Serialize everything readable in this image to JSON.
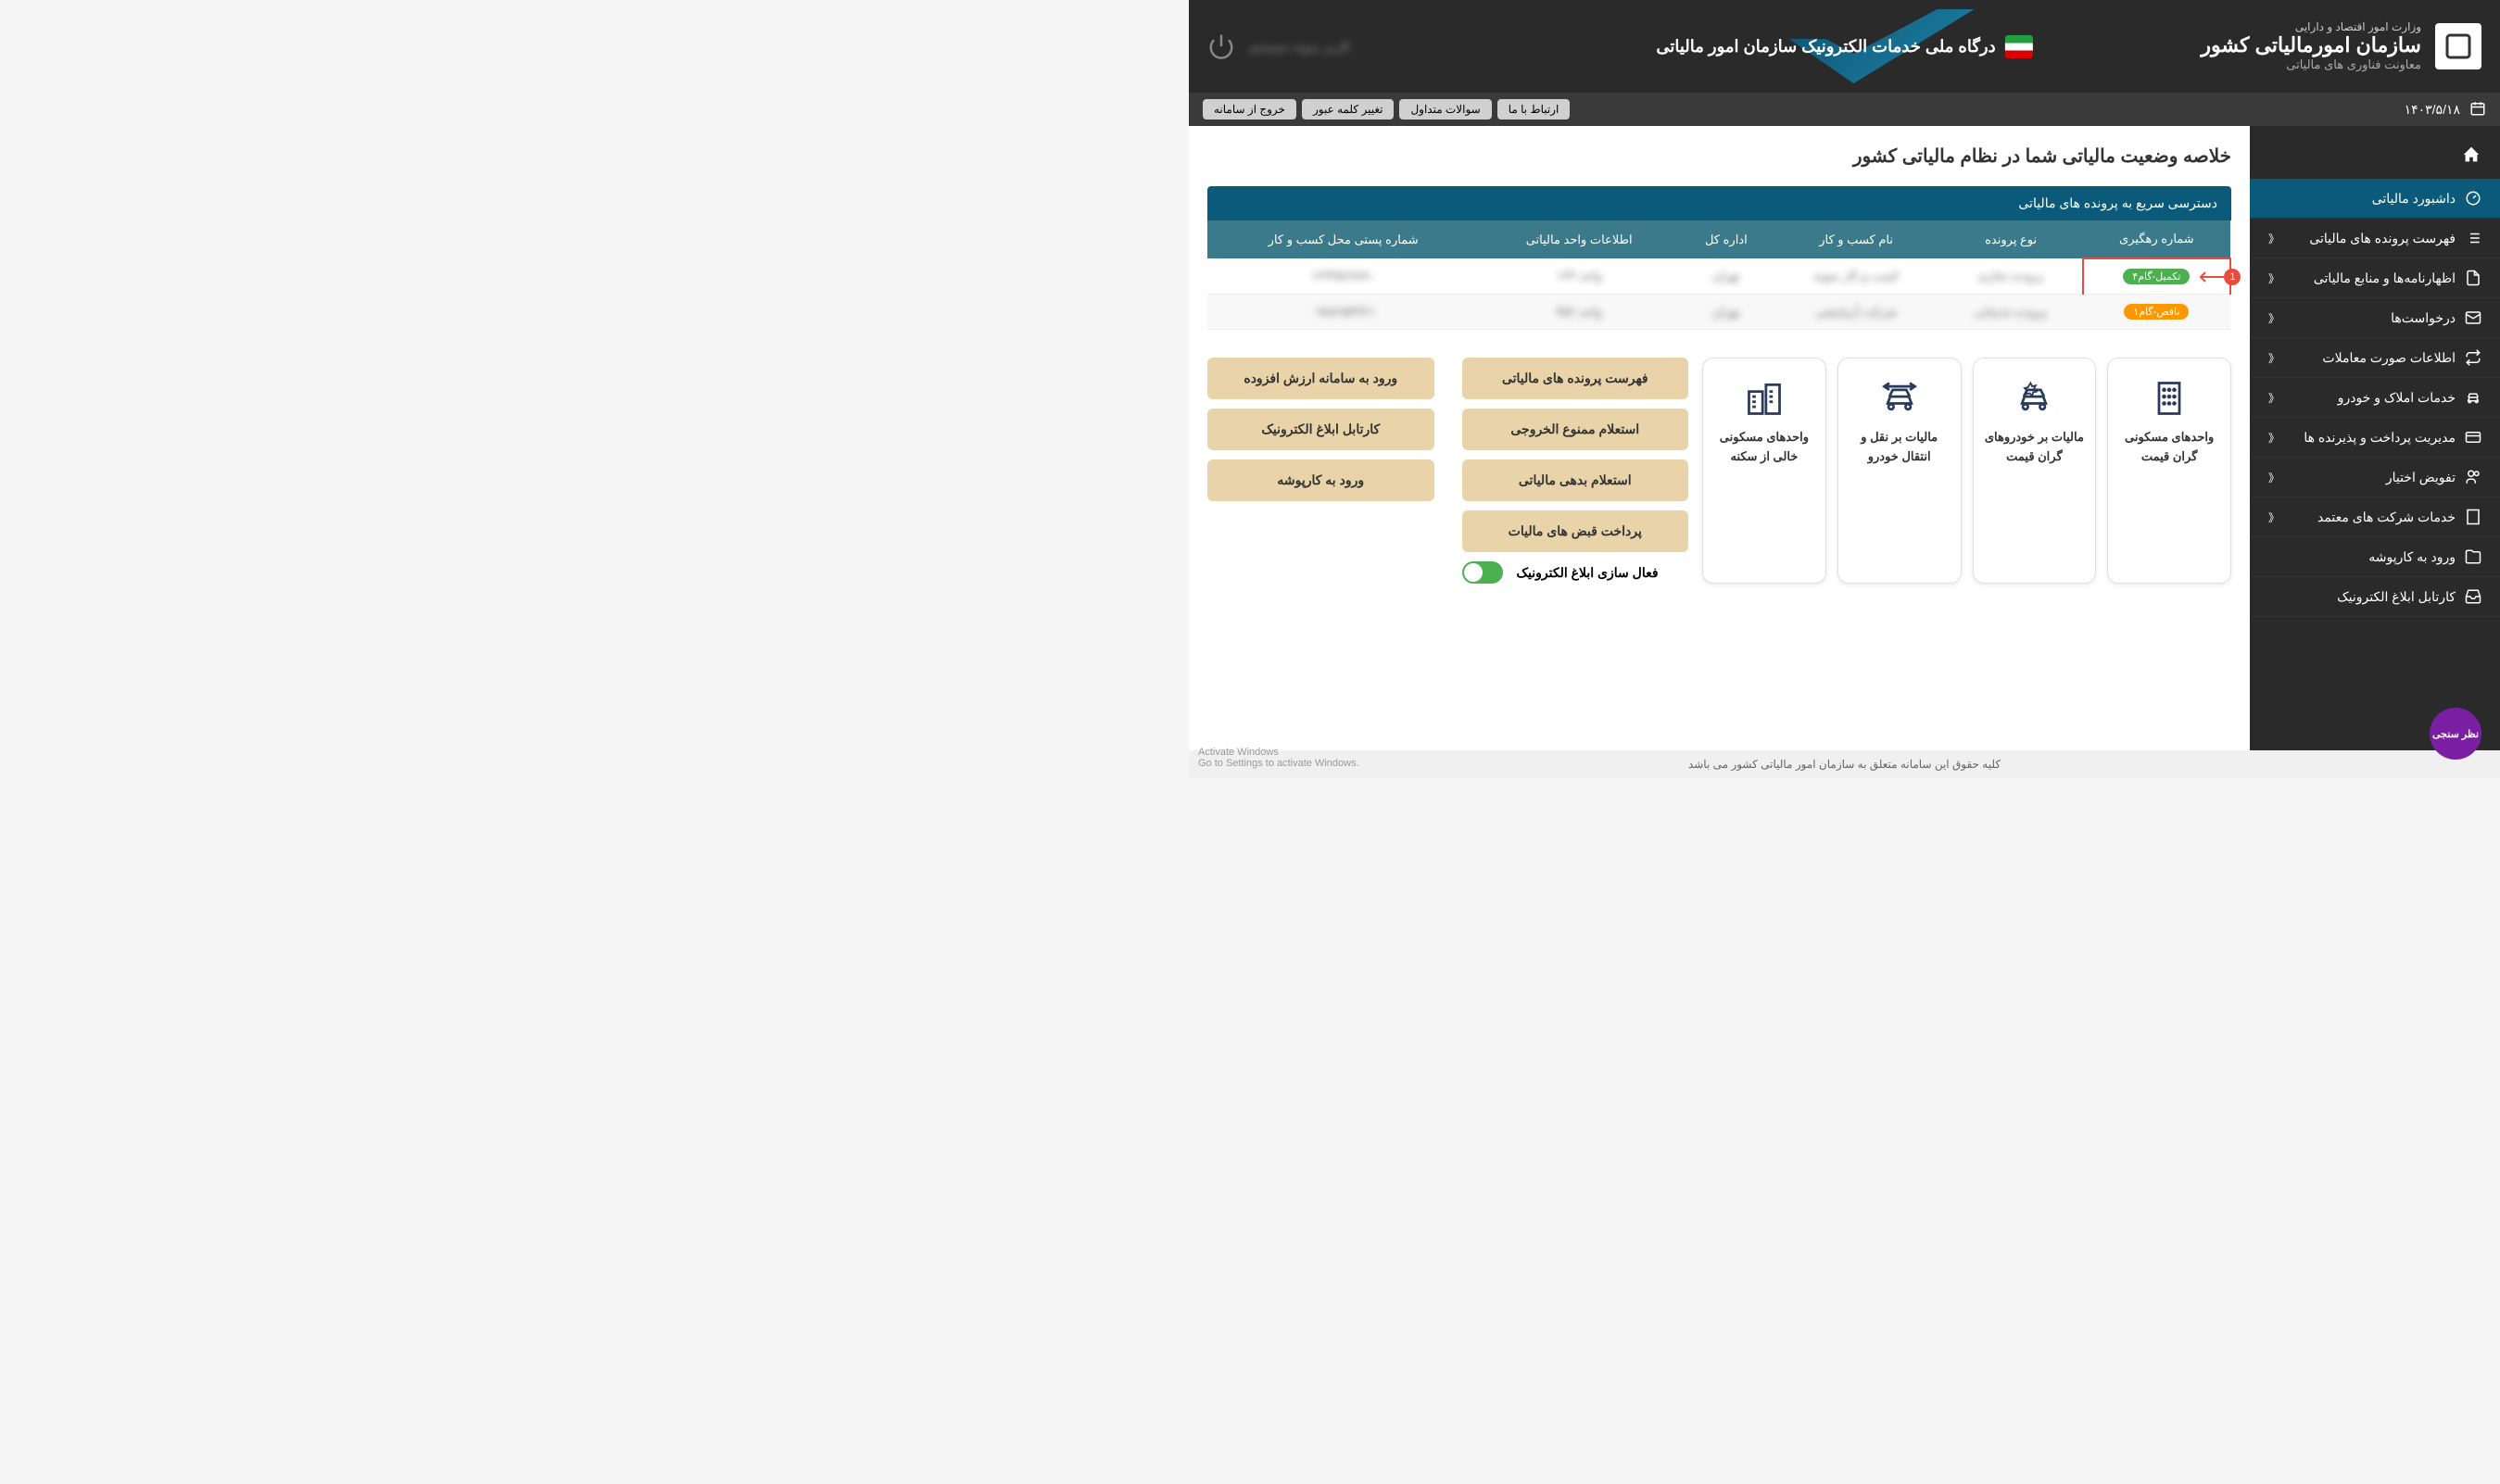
{
  "header": {
    "ministry": "وزارت امور اقتصاد و دارایی",
    "org": "سازمان امورمالیاتی کشور",
    "dept": "معاونت فناوری های مالیاتی",
    "portal": "درگاه ملی خدمات الکترونیک سازمان امور مالیاتی",
    "user": "کاربر نمونه سیستم"
  },
  "topbar": {
    "date": "۱۴۰۳/۵/۱۸",
    "buttons": {
      "contact": "ارتباط با ما",
      "faq": "سوالات متداول",
      "changepass": "تغییر کلمه عبور",
      "logout": "خروج از سامانه"
    }
  },
  "sidebar": {
    "items": [
      {
        "label": "داشبورد مالیاتی",
        "icon": "gauge",
        "active": true,
        "expandable": false
      },
      {
        "label": "فهرست پرونده های مالیاتی",
        "icon": "list",
        "active": false,
        "expandable": true
      },
      {
        "label": "اظهارنامه‌ها و منابع مالیاتی",
        "icon": "doc",
        "active": false,
        "expandable": true
      },
      {
        "label": "درخواست‌ها",
        "icon": "envelope",
        "active": false,
        "expandable": true
      },
      {
        "label": "اطلاعات صورت معاملات",
        "icon": "exchange",
        "active": false,
        "expandable": true
      },
      {
        "label": "خدمات املاک و خودرو",
        "icon": "car",
        "active": false,
        "expandable": true
      },
      {
        "label": "مدیریت پرداخت و پذیرنده ها",
        "icon": "card",
        "active": false,
        "expandable": true
      },
      {
        "label": "تفویض اختیار",
        "icon": "users",
        "active": false,
        "expandable": true
      },
      {
        "label": "خدمات شرکت های معتمد",
        "icon": "building",
        "active": false,
        "expandable": true
      },
      {
        "label": "ورود به کارپوشه",
        "icon": "folder",
        "active": false,
        "expandable": false
      },
      {
        "label": "کارتابل ابلاغ الکترونیک",
        "icon": "inbox",
        "active": false,
        "expandable": false
      }
    ]
  },
  "main": {
    "title": "خلاصه وضعیت مالیاتی شما در نظام مالیاتی کشور",
    "panel_title": "دسترسی سریع به پرونده های مالیاتی",
    "annotation_number": "1",
    "table": {
      "columns": [
        "شماره رهگیری",
        "نوع پرونده",
        "نام کسب و کار",
        "اداره کل",
        "اطلاعات واحد مالیاتی",
        "شماره پستی محل کسب و کار"
      ],
      "rows": [
        {
          "badge": "تکمیل-گام۴",
          "badge_color": "green",
          "highlighted": true,
          "cells": [
            "پرونده تجاری",
            "کسب و کار نمونه",
            "تهران",
            "واحد ۱۲۳",
            "۱۲۳۴۵۶۷۸۹۰"
          ]
        },
        {
          "badge": "ناقص-گام۱",
          "badge_color": "orange",
          "highlighted": false,
          "cells": [
            "پرونده خدماتی",
            "شرکت آزمایشی",
            "تهران",
            "واحد ۴۵۶",
            "۰۹۸۷۶۵۴۳۲۱"
          ]
        }
      ]
    },
    "service_cards": [
      {
        "label": "واحدهای مسکونی گران قیمت",
        "icon": "building-grid"
      },
      {
        "label": "مالیات بر خودروهای گران قیمت",
        "icon": "car-star"
      },
      {
        "label": "مالیات بر نقل و انتقال خودرو",
        "icon": "car-transfer"
      },
      {
        "label": "واحدهای مسکونی خالی از سکنه",
        "icon": "buildings"
      }
    ],
    "action_buttons": {
      "col1": [
        "فهرست پرونده های مالیاتی",
        "استعلام ممنوع الخروجی",
        "استعلام بدهی مالیاتی",
        "پرداخت قبض های مالیات"
      ],
      "col2": [
        "ورود به سامانه ارزش افزوده",
        "کارتابل ابلاغ الکترونیک",
        "ورود به کارپوشه"
      ]
    },
    "toggle_label": "فعال سازی ابلاغ الکترونیک"
  },
  "footer": {
    "copyright": "کلیه حقوق این سامانه متعلق به سازمان امور مالیاتی کشور می باشد",
    "watermark_line1": "Activate Windows",
    "watermark_line2": "Go to Settings to activate Windows."
  },
  "survey_label": "نظر سنجی",
  "colors": {
    "header_bg": "#2a2a2a",
    "sidebar_active": "#0b5a7a",
    "panel_header": "#0b5a7a",
    "table_header": "#3a7a8a",
    "action_btn": "#e8d4a8",
    "badge_green": "#4caf50",
    "badge_orange": "#ff9800",
    "highlight_border": "#e74c3c",
    "survey": "#7b1fa2"
  }
}
